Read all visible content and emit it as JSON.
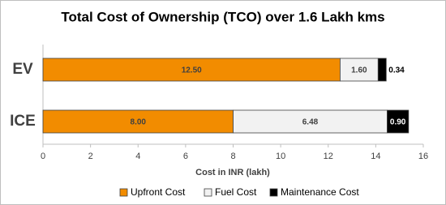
{
  "chart_data": {
    "type": "stacked-barh",
    "title": "Total Cost of Ownership (TCO) over 1.6 Lakh kms",
    "x_label": "Cost in INR (lakh)",
    "categories": [
      "EV",
      "ICE"
    ],
    "series": [
      {
        "name": "Upfront Cost",
        "color": "#f28c00",
        "values": [
          12.5,
          8.0
        ],
        "value_labels": [
          "12.50",
          "8.00"
        ]
      },
      {
        "name": "Fuel Cost",
        "color": "#f2f2f2",
        "values": [
          1.6,
          6.48
        ],
        "value_labels": [
          "1.60",
          "6.48"
        ]
      },
      {
        "name": "Maintenance Cost",
        "color": "#000000",
        "values": [
          0.34,
          0.9
        ],
        "value_labels": [
          "0.34",
          "0.90"
        ]
      }
    ],
    "xlim": [
      0,
      16
    ],
    "xticks": [
      0,
      2,
      4,
      6,
      8,
      10,
      12,
      14,
      16
    ]
  }
}
